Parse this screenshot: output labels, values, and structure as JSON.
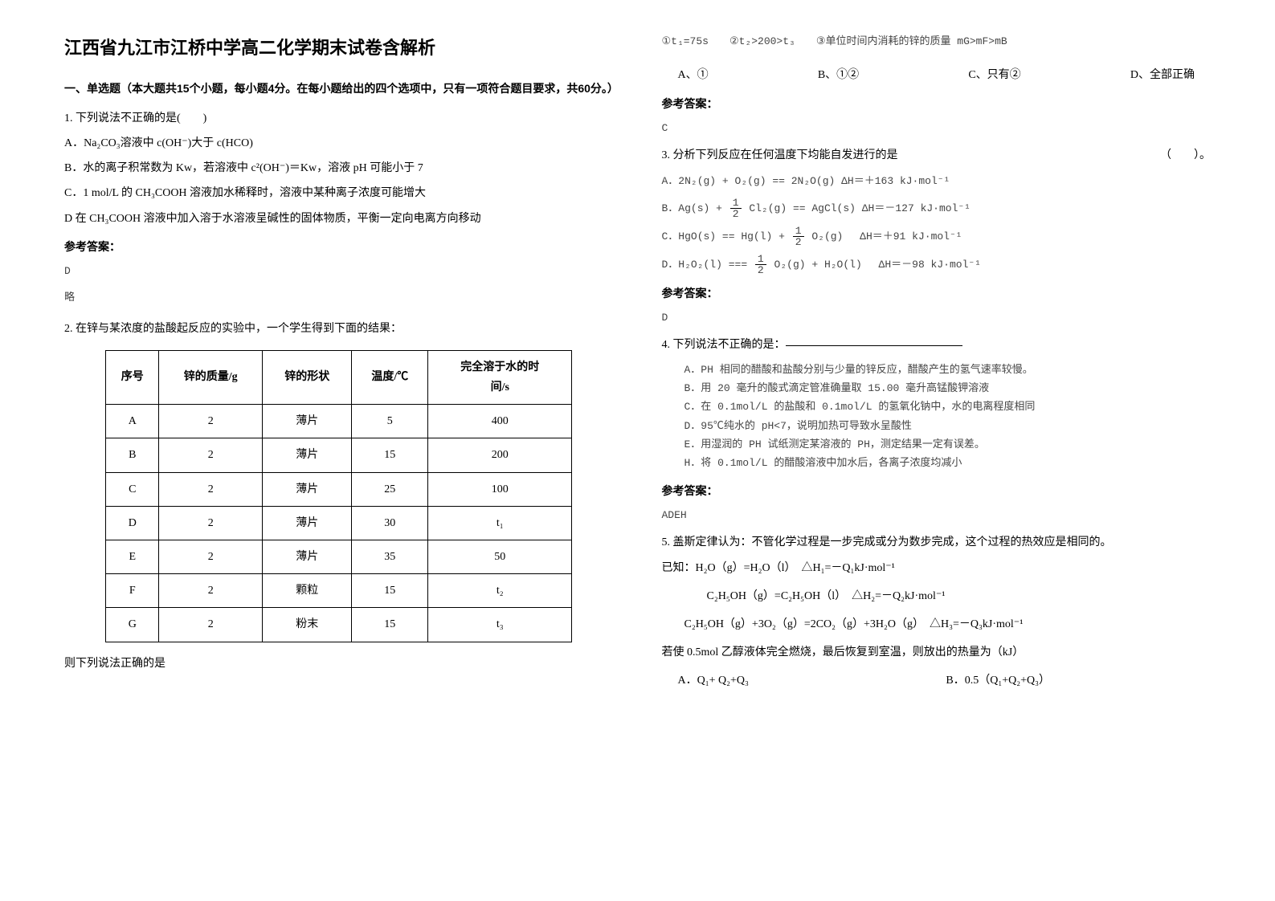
{
  "title": "江西省九江市江桥中学高二化学期末试卷含解析",
  "section1": "一、单选题（本大题共15个小题，每小题4分。在每小题给出的四个选项中，只有一项符合题目要求，共60分。）",
  "q1": {
    "stem": "1. 下列说法不正确的是(　　)",
    "a": "A．Na₂CO₃溶液中 c(OH⁻)大于 c(HCO)",
    "b": "B．水的离子积常数为 Kw，若溶液中 c²(OH⁻)＝Kw，溶液 pH 可能小于 7",
    "c": "C．1 mol/L 的 CH₃COOH 溶液加水稀释时，溶液中某种离子浓度可能增大",
    "d": "D 在 CH₃COOH 溶液中加入溶于水溶液呈碱性的固体物质，平衡一定向电离方向移动",
    "ans": "D",
    "exp": "略"
  },
  "q2": {
    "stem": "2. 在锌与某浓度的盐酸起反应的实验中，一个学生得到下面的结果：",
    "table": {
      "cols": [
        "序号",
        "锌的质量/g",
        "锌的形状",
        "温度/℃",
        "完全溶于水的时间/s"
      ],
      "rows": [
        [
          "A",
          "2",
          "薄片",
          "5",
          "400"
        ],
        [
          "B",
          "2",
          "薄片",
          "15",
          "200"
        ],
        [
          "C",
          "2",
          "薄片",
          "25",
          "100"
        ],
        [
          "D",
          "2",
          "薄片",
          "30",
          "t₁"
        ],
        [
          "E",
          "2",
          "薄片",
          "35",
          "50"
        ],
        [
          "F",
          "2",
          "颗粒",
          "15",
          "t₂"
        ],
        [
          "G",
          "2",
          "粉末",
          "15",
          "t₃"
        ]
      ]
    },
    "after": "则下列说法正确的是"
  },
  "q2line": "①t₁=75s　　②t₂>200>t₃　　③单位时间内消耗的锌的质量 mG>mF>mB",
  "q2opts": {
    "a": "A、①",
    "b": "B、①②",
    "c": "C、只有②",
    "d": "D、全部正确"
  },
  "anslabel": "参考答案：",
  "q2ans": "C",
  "q3": {
    "stem": "3. 分析下列反应在任何温度下均能自发进行的是",
    "paren": "（　　）。",
    "a": "A．2N₂(g) + O₂(g) == 2N₂O(g) ΔH＝＋163 kJ·mol⁻¹",
    "b1": "B．Ag(s) + ",
    "b2": " Cl₂(g) == AgCl(s) ΔH＝－127 kJ·mol⁻¹",
    "c1": "C．HgO(s) == Hg(l) + ",
    "c2": " O₂(g)　 ΔH＝＋91 kJ·mol⁻¹",
    "d1": "D．H₂O₂(l) === ",
    "d2": " O₂(g) + H₂O(l)　 ΔH＝－98 kJ·mol⁻¹",
    "ans": "D"
  },
  "q4": {
    "stem": "4. 下列说法不正确的是：",
    "a": "A．PH 相同的醋酸和盐酸分别与少量的锌反应，醋酸产生的氢气速率较慢。",
    "b": "B．用 20 毫升的酸式滴定管准确量取 15.00 毫升高锰酸钾溶液",
    "c": "C．在 0.1mol/L 的盐酸和 0.1mol/L 的氢氧化钠中，水的电离程度相同",
    "d": "D．95℃纯水的 pH<7，说明加热可导致水呈酸性",
    "e": "E．用湿润的 PH 试纸测定某溶液的 PH，测定结果一定有误差。",
    "h": "H．将 0.1mol/L 的醋酸溶液中加水后，各离子浓度均减小",
    "ans": "ADEH"
  },
  "q5": {
    "stem": "5. 盖斯定律认为：不管化学过程是一步完成或分为数步完成，这个过程的热效应是相同的。",
    "line1": "已知：H₂O（g）=H₂O（l）　△H₁=－Q₁kJ·mol⁻¹",
    "line2": "C₂H₅OH（g）=C₂H₅OH（l）　△H₂=－Q₂kJ·mol⁻¹",
    "line3": "C₂H₅OH（g）+3O₂（g）=2CO₂（g）+3H₂O（g）　△H₃=－Q₃kJ·mol⁻¹",
    "line4": "若使 0.5mol 乙醇液体完全燃烧，最后恢复到室温，则放出的热量为（kJ）",
    "a": "A．Q₁+ Q₂+Q₃",
    "b": "B．0.5（Q₁+Q₂+Q₃）"
  }
}
